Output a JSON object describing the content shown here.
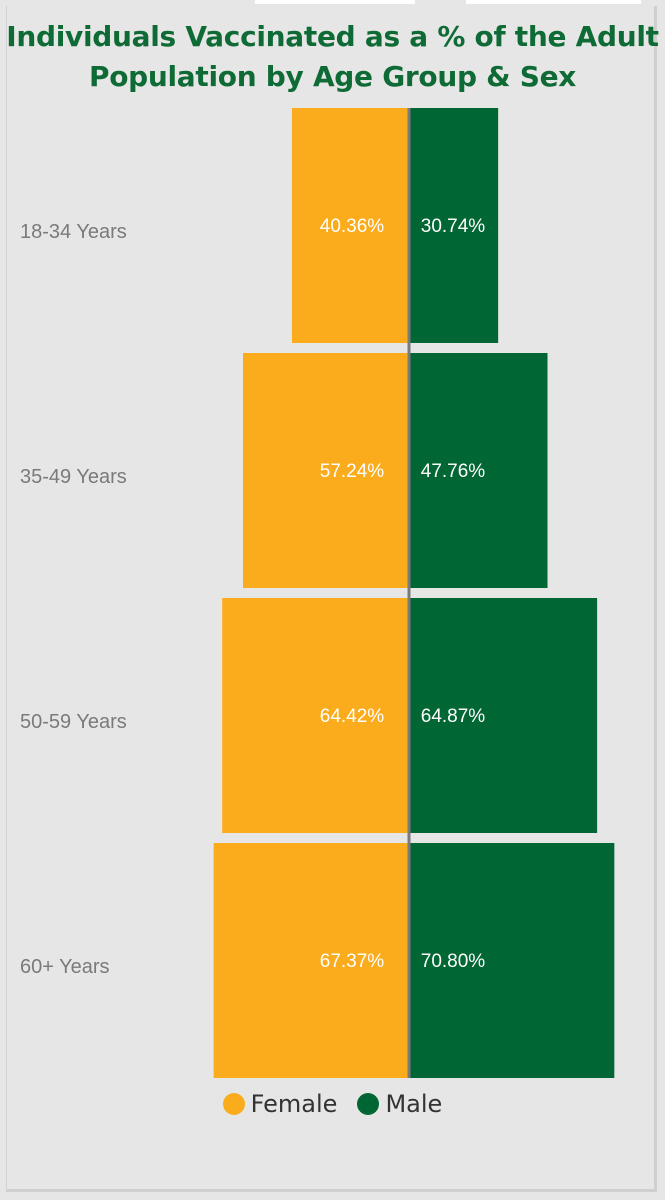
{
  "chart_data": {
    "type": "bar",
    "orientation": "horizontal-pyramid",
    "title_lines": [
      "Individuals Vaccinated as a % of the Adult",
      "Population by Age Group & Sex"
    ],
    "categories": [
      "18-34 Years",
      "35-49 Years",
      "50-59 Years",
      "60+ Years"
    ],
    "series": [
      {
        "name": "Female",
        "color": "#fbac1d",
        "values": [
          40.36,
          57.24,
          64.42,
          67.37
        ],
        "labels": [
          "40.36%",
          "57.24%",
          "64.42%",
          "67.37%"
        ]
      },
      {
        "name": "Male",
        "color": "#006633",
        "values": [
          30.74,
          47.76,
          64.87,
          70.8
        ],
        "labels": [
          "30.74%",
          "47.76%",
          "64.87%",
          "70.80%"
        ]
      }
    ],
    "legend": "bottom-center",
    "grid": false
  }
}
